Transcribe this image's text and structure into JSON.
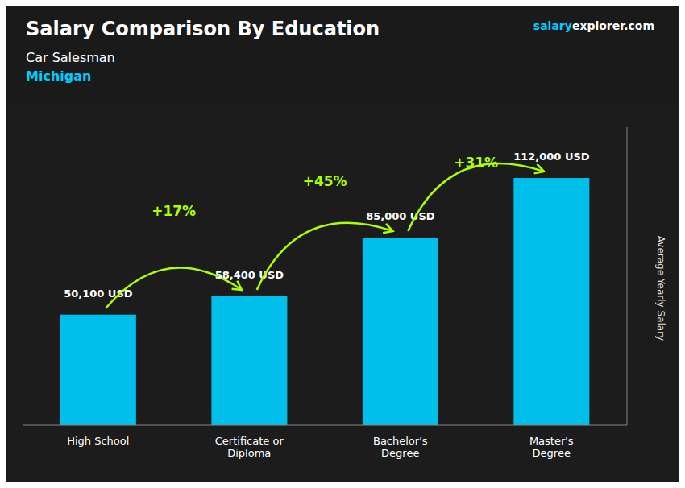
{
  "chart_data": {
    "type": "bar",
    "title": "Salary Comparison By Education",
    "subtitle": [
      {
        "text": "Car Salesman"
      },
      {
        "text": "Michigan",
        "color": "#00ccff"
      }
    ],
    "ylabel": "Average Yearly Salary",
    "categories": [
      "High School",
      "Certificate or\nDiploma",
      "Bachelor's\nDegree",
      "Master's\nDegree"
    ],
    "values": [
      50100,
      58400,
      85000,
      112000
    ],
    "value_labels": [
      "50,100 USD",
      "58,400 USD",
      "85,000 USD",
      "112,000 USD"
    ],
    "data_labels": true,
    "color": "#00bfea",
    "ylim": [
      0,
      135000
    ],
    "yticks": [],
    "tick_labels": "x",
    "grid": false,
    "annotations": [
      {
        "text": "salary",
        "color": "#00ccff"
      },
      {
        "text": "explorer.com"
      },
      {
        "text": "+17%",
        "color": "#aaff00"
      },
      {
        "text": "+45%",
        "color": "#aaff00"
      },
      {
        "text": "+31%",
        "color": "#aaff00"
      }
    ]
  }
}
